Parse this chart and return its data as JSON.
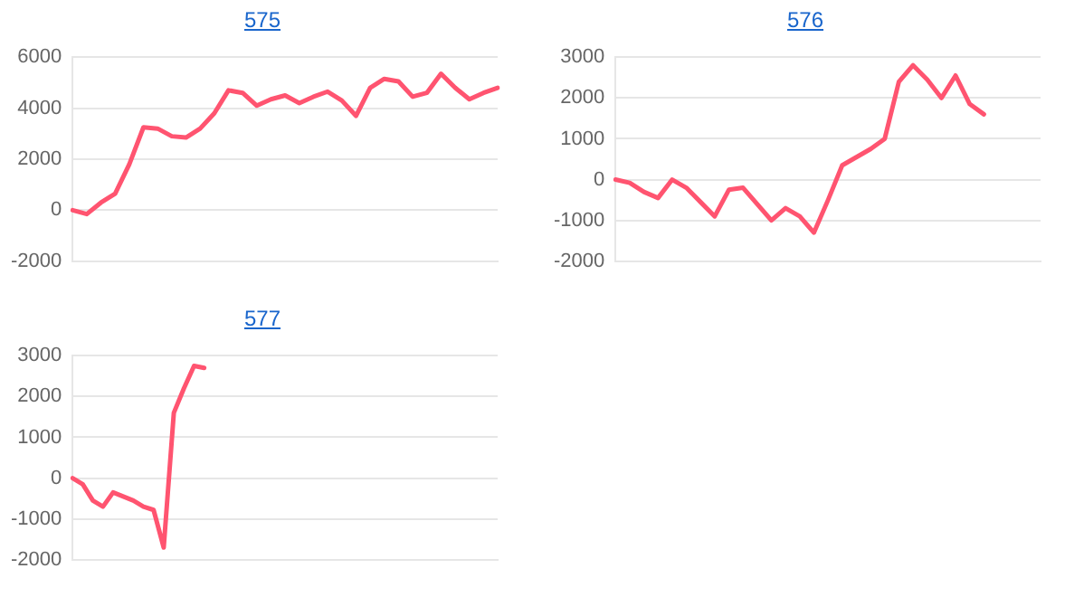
{
  "chart_data": [
    {
      "type": "line",
      "title": "575",
      "categories": [
        null,
        null,
        null,
        null,
        null,
        null,
        null,
        null,
        null,
        null,
        null,
        null,
        null,
        null,
        null,
        null,
        null,
        null,
        null,
        null,
        null,
        null,
        null,
        null,
        null,
        null,
        null,
        null,
        null,
        null,
        null
      ],
      "series": [
        {
          "color": "#ff5470",
          "values": [
            0,
            -150,
            300,
            650,
            1800,
            3250,
            3200,
            2900,
            2850,
            3200,
            3800,
            4700,
            4600,
            4100,
            4350,
            4500,
            4200,
            4450,
            4650,
            4300,
            3700,
            4800,
            5150,
            5050,
            4450,
            4600,
            5350,
            4800,
            4350,
            4600,
            4800
          ]
        }
      ],
      "ylim": [
        -2000,
        6000
      ],
      "yticks": [
        -2000,
        0,
        2000,
        4000,
        6000
      ],
      "grid": "y",
      "tick_labels": "y",
      "marker": "none",
      "line_style": "solid",
      "legend": false
    },
    {
      "type": "line",
      "title": "576",
      "categories": [
        null,
        null,
        null,
        null,
        null,
        null,
        null,
        null,
        null,
        null,
        null,
        null,
        null,
        null,
        null,
        null,
        null,
        null,
        null,
        null,
        null,
        null,
        null,
        null,
        null,
        null,
        null,
        null,
        null,
        null,
        null
      ],
      "series": [
        {
          "color": "#ff5470",
          "values": [
            0,
            -80,
            -300,
            -450,
            0,
            -200,
            -550,
            -900,
            -250,
            -200,
            -600,
            -1000,
            -700,
            -900,
            -1300,
            -500,
            350,
            550,
            750,
            1000,
            2400,
            2800,
            2450,
            2000,
            2550,
            1850,
            1600,
            null,
            null,
            null,
            null
          ]
        }
      ],
      "ylim": [
        -2000,
        3000
      ],
      "yticks": [
        -2000,
        -1000,
        0,
        1000,
        2000,
        3000
      ],
      "grid": "y",
      "tick_labels": "y",
      "marker": "none",
      "line_style": "solid",
      "legend": false
    },
    {
      "type": "line",
      "title": "577",
      "categories": [
        null,
        null,
        null,
        null,
        null,
        null,
        null,
        null,
        null,
        null,
        null,
        null,
        null,
        null,
        null,
        null,
        null,
        null,
        null,
        null,
        null,
        null,
        null,
        null,
        null,
        null,
        null,
        null,
        null,
        null,
        null,
        null,
        null,
        null,
        null,
        null,
        null,
        null,
        null,
        null,
        null,
        null,
        null
      ],
      "series": [
        {
          "color": "#ff5470",
          "values": [
            0,
            -150,
            -550,
            -700,
            -350,
            -450,
            -550,
            -700,
            -780,
            -1700,
            1600,
            2200,
            2750,
            2700,
            null,
            null,
            null,
            null,
            null,
            null,
            null,
            null,
            null,
            null,
            null,
            null,
            null,
            null,
            null,
            null,
            null,
            null,
            null,
            null,
            null,
            null,
            null,
            null,
            null,
            null,
            null,
            null,
            null
          ]
        }
      ],
      "ylim": [
        -2000,
        3000
      ],
      "yticks": [
        -2000,
        -1000,
        0,
        1000,
        2000,
        3000
      ],
      "grid": "y",
      "tick_labels": "y",
      "marker": "none",
      "line_style": "solid",
      "legend": false
    }
  ]
}
